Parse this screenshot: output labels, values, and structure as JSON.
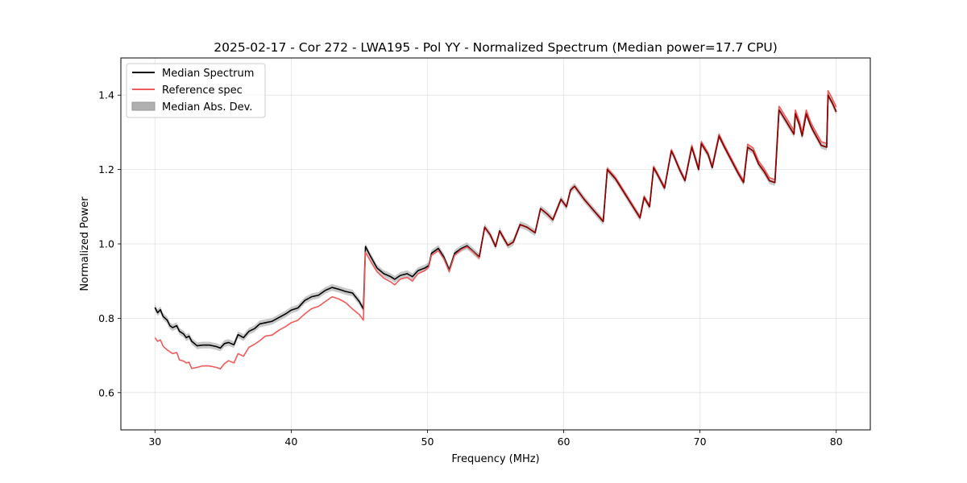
{
  "chart_data": {
    "type": "line",
    "title": "2025-02-17 - Cor 272 - LWA195 - Pol YY - Normalized Spectrum (Median power=17.7 CPU)",
    "xlabel": "Frequency (MHz)",
    "ylabel": "Normalized Power",
    "xlim": [
      27.5,
      82.5
    ],
    "ylim": [
      0.5,
      1.5
    ],
    "xticks": [
      30,
      40,
      50,
      60,
      70,
      80
    ],
    "yticks": [
      0.6,
      0.8,
      1.0,
      1.2,
      1.4
    ],
    "xtick_labels": [
      "30",
      "40",
      "50",
      "60",
      "70",
      "80"
    ],
    "ytick_labels": [
      "0.6",
      "0.8",
      "1.0",
      "1.2",
      "1.4"
    ],
    "grid": true,
    "legend_position": "top-left",
    "legend": [
      "Median Spectrum",
      "Reference spec",
      "Median Abs. Dev."
    ],
    "colors": {
      "median": "#000000",
      "reference": "#f05a5a",
      "mad": "#b0b0b0",
      "overlap": "#8b0000"
    },
    "series": [
      {
        "name": "Median Spectrum",
        "x": [
          30.0,
          30.2,
          30.4,
          30.6,
          30.9,
          31.1,
          31.3,
          31.6,
          31.8,
          32.1,
          32.3,
          32.5,
          32.7,
          33.1,
          33.5,
          34.0,
          34.5,
          34.8,
          35.1,
          35.4,
          35.8,
          36.1,
          36.5,
          36.9,
          37.3,
          37.7,
          38.1,
          38.6,
          39.1,
          39.6,
          40.0,
          40.5,
          41.0,
          41.5,
          42.0,
          42.5,
          43.0,
          43.5,
          44.0,
          44.5,
          45.0,
          45.3,
          45.45,
          45.8,
          46.3,
          46.8,
          47.3,
          47.6,
          48.0,
          48.5,
          48.9,
          49.3,
          49.8,
          50.1,
          50.3,
          50.8,
          51.2,
          51.6,
          52.0,
          52.5,
          52.9,
          53.3,
          53.8,
          54.2,
          54.6,
          55.0,
          55.3,
          55.6,
          55.9,
          56.3,
          56.8,
          57.3,
          57.9,
          58.3,
          58.8,
          59.2,
          59.8,
          60.2,
          60.5,
          60.8,
          61.5,
          62.2,
          62.9,
          63.2,
          63.8,
          64.4,
          65.0,
          65.6,
          65.9,
          66.3,
          66.6,
          66.9,
          67.4,
          67.9,
          68.1,
          68.5,
          68.9,
          69.4,
          69.9,
          70.1,
          70.6,
          70.9,
          71.4,
          71.8,
          72.3,
          72.8,
          73.2,
          73.5,
          73.9,
          74.3,
          74.7,
          75.1,
          75.5,
          75.8,
          75.9,
          76.4,
          76.9,
          77.0,
          77.3,
          77.5,
          77.8,
          78.1,
          78.3,
          78.9,
          79.3,
          79.4,
          79.7,
          80.0
        ],
        "values": [
          0.829,
          0.815,
          0.823,
          0.805,
          0.795,
          0.78,
          0.775,
          0.78,
          0.765,
          0.758,
          0.748,
          0.752,
          0.738,
          0.726,
          0.728,
          0.728,
          0.724,
          0.72,
          0.732,
          0.735,
          0.729,
          0.756,
          0.748,
          0.765,
          0.772,
          0.785,
          0.788,
          0.792,
          0.802,
          0.812,
          0.822,
          0.828,
          0.848,
          0.858,
          0.862,
          0.875,
          0.883,
          0.878,
          0.872,
          0.868,
          0.845,
          0.825,
          0.993,
          0.968,
          0.935,
          0.92,
          0.912,
          0.905,
          0.915,
          0.92,
          0.912,
          0.928,
          0.935,
          0.942,
          0.975,
          0.988,
          0.965,
          0.93,
          0.975,
          0.988,
          0.995,
          0.982,
          0.965,
          1.045,
          1.025,
          0.993,
          1.035,
          1.015,
          0.996,
          1.005,
          1.052,
          1.045,
          1.03,
          1.095,
          1.08,
          1.065,
          1.12,
          1.1,
          1.145,
          1.155,
          1.12,
          1.09,
          1.06,
          1.2,
          1.175,
          1.14,
          1.105,
          1.07,
          1.125,
          1.1,
          1.205,
          1.185,
          1.15,
          1.25,
          1.235,
          1.2,
          1.17,
          1.26,
          1.2,
          1.27,
          1.24,
          1.205,
          1.29,
          1.26,
          1.225,
          1.19,
          1.165,
          1.26,
          1.25,
          1.215,
          1.195,
          1.17,
          1.165,
          1.36,
          1.355,
          1.325,
          1.295,
          1.35,
          1.32,
          1.29,
          1.35,
          1.32,
          1.305,
          1.265,
          1.26,
          1.4,
          1.38,
          1.355
        ]
      },
      {
        "name": "Reference spec",
        "x": [
          30.0,
          30.2,
          30.4,
          30.6,
          30.9,
          31.1,
          31.3,
          31.6,
          31.8,
          32.1,
          32.3,
          32.5,
          32.7,
          33.1,
          33.5,
          34.0,
          34.5,
          34.8,
          35.1,
          35.4,
          35.8,
          36.1,
          36.5,
          36.9,
          37.3,
          37.7,
          38.1,
          38.6,
          39.1,
          39.6,
          40.0,
          40.5,
          41.0,
          41.5,
          42.0,
          42.5,
          43.0,
          43.5,
          44.0,
          44.5,
          45.0,
          45.3,
          45.45,
          45.8,
          46.3,
          46.8,
          47.3,
          47.6,
          48.0,
          48.5,
          48.9,
          49.3,
          49.8,
          50.1,
          50.3,
          50.8,
          51.2,
          51.6,
          52.0,
          52.5,
          52.9,
          53.3,
          53.8,
          54.2,
          54.6,
          55.0,
          55.3,
          55.6,
          55.9,
          56.3,
          56.8,
          57.3,
          57.9,
          58.3,
          58.8,
          59.2,
          59.8,
          60.2,
          60.5,
          60.8,
          61.5,
          62.2,
          62.9,
          63.2,
          63.8,
          64.4,
          65.0,
          65.6,
          65.9,
          66.3,
          66.6,
          66.9,
          67.4,
          67.9,
          68.1,
          68.5,
          68.9,
          69.4,
          69.9,
          70.1,
          70.6,
          70.9,
          71.4,
          71.8,
          72.3,
          72.8,
          73.2,
          73.5,
          73.9,
          74.3,
          74.7,
          75.1,
          75.5,
          75.8,
          75.9,
          76.4,
          76.9,
          77.0,
          77.3,
          77.5,
          77.8,
          78.1,
          78.3,
          78.9,
          79.3,
          79.4,
          79.7,
          80.0
        ],
        "values": [
          0.748,
          0.738,
          0.742,
          0.725,
          0.715,
          0.71,
          0.705,
          0.708,
          0.688,
          0.685,
          0.68,
          0.682,
          0.665,
          0.668,
          0.672,
          0.672,
          0.668,
          0.664,
          0.678,
          0.686,
          0.68,
          0.705,
          0.698,
          0.722,
          0.73,
          0.74,
          0.752,
          0.755,
          0.768,
          0.778,
          0.788,
          0.795,
          0.812,
          0.826,
          0.832,
          0.845,
          0.858,
          0.852,
          0.842,
          0.825,
          0.81,
          0.795,
          0.978,
          0.955,
          0.925,
          0.908,
          0.898,
          0.89,
          0.905,
          0.91,
          0.9,
          0.92,
          0.928,
          0.938,
          0.97,
          0.982,
          0.96,
          0.925,
          0.97,
          0.985,
          0.992,
          0.98,
          0.962,
          1.045,
          1.025,
          0.993,
          1.035,
          1.015,
          0.996,
          1.005,
          1.052,
          1.045,
          1.03,
          1.095,
          1.08,
          1.065,
          1.12,
          1.1,
          1.145,
          1.155,
          1.12,
          1.09,
          1.063,
          1.203,
          1.178,
          1.143,
          1.108,
          1.073,
          1.128,
          1.103,
          1.208,
          1.188,
          1.153,
          1.253,
          1.238,
          1.203,
          1.173,
          1.265,
          1.205,
          1.275,
          1.245,
          1.21,
          1.295,
          1.265,
          1.23,
          1.195,
          1.17,
          1.268,
          1.258,
          1.223,
          1.203,
          1.178,
          1.173,
          1.37,
          1.365,
          1.335,
          1.305,
          1.36,
          1.33,
          1.3,
          1.36,
          1.33,
          1.315,
          1.275,
          1.27,
          1.412,
          1.392,
          1.368
        ]
      }
    ],
    "mad_band_halfwidth": 0.009
  }
}
